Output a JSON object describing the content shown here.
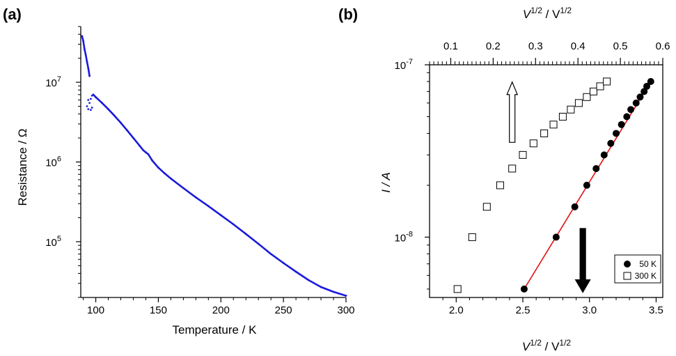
{
  "chart_data": [
    {
      "panel": "(a)",
      "type": "scatter",
      "title": "",
      "xlabel": "Temperature / K",
      "ylabel": "Resistance / Ω",
      "xlim": [
        88,
        300
      ],
      "ylim_log10": [
        4.3,
        7.7
      ],
      "yscale": "log",
      "xticks": [
        100,
        150,
        200,
        250,
        300
      ],
      "yticks": [
        {
          "value": 100000,
          "base": "10",
          "exp": "5"
        },
        {
          "value": 1000000,
          "base": "10",
          "exp": "6"
        },
        {
          "value": 10000000,
          "base": "10",
          "exp": "7"
        }
      ],
      "color": "#1a1adc",
      "series": [
        {
          "points": [
            [
              89,
              38000000.0
            ],
            [
              90,
              33000000.0
            ],
            [
              91,
              26000000.0
            ],
            [
              92,
              22000000.0
            ],
            [
              93,
              18000000.0
            ],
            [
              94,
              15000000.0
            ],
            [
              95,
              12000000.0
            ],
            [
              93,
              5000000.0
            ],
            [
              94,
              4600000.0
            ],
            [
              94,
              6000000.0
            ],
            [
              95,
              5500000.0
            ],
            [
              96,
              6200000.0
            ],
            [
              96,
              4500000.0
            ],
            [
              97,
              4800000.0
            ],
            [
              97,
              6800000.0
            ],
            [
              98,
              7000000.0
            ],
            [
              100,
              6500000.0
            ],
            [
              105,
              5500000.0
            ],
            [
              110,
              4600000.0
            ],
            [
              115,
              3800000.0
            ],
            [
              120,
              3100000.0
            ],
            [
              125,
              2500000.0
            ],
            [
              130,
              2000000.0
            ],
            [
              135,
              1600000.0
            ],
            [
              138,
              1400000.0
            ],
            [
              140,
              1320000.0
            ],
            [
              142,
              1250000.0
            ],
            [
              145,
              1050000.0
            ],
            [
              150,
              850000.0
            ],
            [
              155,
              720000.0
            ],
            [
              160,
              620000.0
            ],
            [
              170,
              470000.0
            ],
            [
              180,
              360000.0
            ],
            [
              190,
              280000.0
            ],
            [
              200,
              215000.0
            ],
            [
              210,
              165000.0
            ],
            [
              220,
              125000.0
            ],
            [
              230,
              94000.0
            ],
            [
              240,
              70000.0
            ],
            [
              250,
              54000.0
            ],
            [
              260,
              42000.0
            ],
            [
              270,
              33000.0
            ],
            [
              280,
              27000.0
            ],
            [
              290,
              23500.0
            ],
            [
              300,
              21000.0
            ]
          ]
        }
      ]
    },
    {
      "panel": "(b)",
      "type": "scatter",
      "title": "",
      "xlabel_base": "V",
      "xlabel_sup": "1/2",
      "xlabel_mid": " / V",
      "xlabel_sup2": "1/2",
      "ylabel": "I / A",
      "xlim": [
        1.8,
        3.55
      ],
      "xticks": [
        "2.0",
        "2.5",
        "3.0",
        "3.5"
      ],
      "top_xlim": [
        0.05,
        0.6
      ],
      "top_xticks": [
        "0.1",
        "0.2",
        "0.3",
        "0.4",
        "0.5",
        "0.6"
      ],
      "ylim_log10": [
        -8.35,
        -7
      ],
      "yscale": "log",
      "yticks": [
        {
          "value": 1e-08,
          "base": "10",
          "exp": "-8"
        },
        {
          "value": 1e-07,
          "base": "10",
          "exp": "-7"
        }
      ],
      "legend_position": "bottom-right",
      "series": [
        {
          "name": "50 K",
          "marker": "filled-circle",
          "axis": "bottom",
          "fit_line_color": "#e01010",
          "points": [
            [
              2.51,
              5e-09
            ],
            [
              2.75,
              1e-08
            ],
            [
              2.89,
              1.5e-08
            ],
            [
              2.98,
              2e-08
            ],
            [
              3.05,
              2.5e-08
            ],
            [
              3.11,
              3e-08
            ],
            [
              3.16,
              3.5e-08
            ],
            [
              3.2,
              4e-08
            ],
            [
              3.24,
              4.5e-08
            ],
            [
              3.28,
              5e-08
            ],
            [
              3.31,
              5.5e-08
            ],
            [
              3.35,
              6e-08
            ],
            [
              3.38,
              6.5e-08
            ],
            [
              3.41,
              7e-08
            ],
            [
              3.43,
              7.5e-08
            ],
            [
              3.46,
              8e-08
            ]
          ]
        },
        {
          "name": "300 K",
          "marker": "open-square",
          "axis": "bottom",
          "points": [
            [
              2.01,
              5e-09
            ],
            [
              2.12,
              1e-08
            ],
            [
              2.23,
              1.5e-08
            ],
            [
              2.33,
              2e-08
            ],
            [
              2.42,
              2.5e-08
            ],
            [
              2.5,
              3e-08
            ],
            [
              2.58,
              3.5e-08
            ],
            [
              2.66,
              4e-08
            ],
            [
              2.73,
              4.5e-08
            ],
            [
              2.8,
              5e-08
            ],
            [
              2.86,
              5.5e-08
            ],
            [
              2.92,
              6e-08
            ],
            [
              2.98,
              6.5e-08
            ],
            [
              3.03,
              7e-08
            ],
            [
              3.08,
              7.5e-08
            ],
            [
              3.13,
              8e-08
            ]
          ]
        }
      ],
      "arrows": [
        {
          "style": "open",
          "direction": "up",
          "x": 2.42,
          "from": -7.45,
          "to": -7.1
        },
        {
          "style": "filled",
          "direction": "down",
          "x": 2.95,
          "from": -7.95,
          "to": -8.32
        }
      ]
    }
  ]
}
